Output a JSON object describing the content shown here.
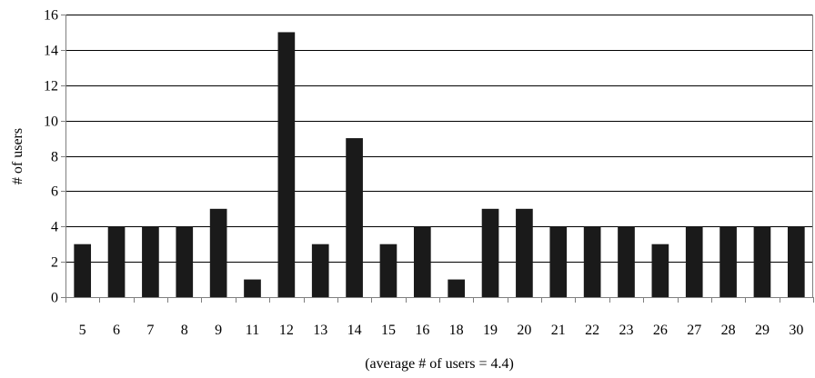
{
  "chart_data": {
    "type": "bar",
    "title": "",
    "xlabel": "(average # of users = 4.4)",
    "ylabel": "# of users",
    "ylim": [
      0,
      16
    ],
    "yticks": [
      0,
      2,
      4,
      6,
      8,
      10,
      12,
      14,
      16
    ],
    "grid": true,
    "legend": "none",
    "categories": [
      "5",
      "6",
      "7",
      "8",
      "9",
      "11",
      "12",
      "13",
      "14",
      "15",
      "16",
      "18",
      "19",
      "20",
      "21",
      "22",
      "23",
      "26",
      "27",
      "28",
      "29",
      "30"
    ],
    "values": [
      3,
      4,
      4,
      4,
      5,
      1,
      15,
      3,
      9,
      3,
      4,
      1,
      5,
      5,
      4,
      4,
      4,
      3,
      4,
      4,
      4,
      4
    ],
    "colors": {
      "bar": "#1a1a1a",
      "grid": "#000000",
      "axis": "#7f7f7f",
      "frame": "#7f7f7f"
    }
  }
}
